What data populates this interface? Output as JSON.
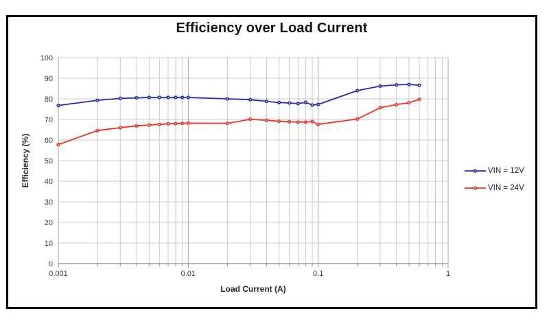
{
  "chart_data": {
    "type": "line",
    "title": "Efficiency over Load Current",
    "xlabel": "Load Current (A)",
    "ylabel": "Efficiency (%)",
    "x_scale": "log",
    "xlim": [
      0.001,
      1
    ],
    "ylim": [
      0,
      100
    ],
    "grid": true,
    "legend_position": "right-outside",
    "y_ticks": [
      0,
      10,
      20,
      30,
      40,
      50,
      60,
      70,
      80,
      90,
      100
    ],
    "x_major_ticks": [
      0.001,
      0.01,
      0.1,
      1
    ],
    "x_tick_labels": [
      "0.001",
      "0.01",
      "0.1",
      "1"
    ],
    "x": [
      0.001,
      0.002,
      0.003,
      0.004,
      0.005,
      0.006,
      0.007,
      0.008,
      0.009,
      0.01,
      0.02,
      0.03,
      0.04,
      0.05,
      0.06,
      0.07,
      0.08,
      0.09,
      0.1,
      0.2,
      0.3,
      0.4,
      0.5,
      0.6
    ],
    "series": [
      {
        "name": "VIN = 12V",
        "color": "#2A2AA8",
        "marker": "circle",
        "values": [
          76.8,
          79.3,
          80.2,
          80.5,
          80.7,
          80.7,
          80.7,
          80.7,
          80.7,
          80.7,
          80.0,
          79.6,
          78.8,
          78.2,
          78.0,
          77.7,
          78.3,
          77.0,
          77.3,
          84.0,
          86.2,
          86.8,
          87.0,
          86.6
        ]
      },
      {
        "name": "VIN = 24V",
        "color": "#EE3124",
        "marker": "circle",
        "values": [
          57.8,
          64.6,
          66.0,
          66.9,
          67.3,
          67.6,
          67.9,
          68.0,
          68.1,
          68.2,
          68.1,
          70.1,
          69.6,
          69.1,
          68.9,
          68.7,
          68.7,
          69.0,
          67.6,
          70.2,
          75.7,
          77.2,
          78.1,
          79.8
        ]
      }
    ],
    "colors": {
      "grid_minor": "#C9C9C9",
      "grid_major": "#A8A8A8",
      "axis_line": "#8C8C8C",
      "tick_label": "#3a3a3a"
    }
  }
}
